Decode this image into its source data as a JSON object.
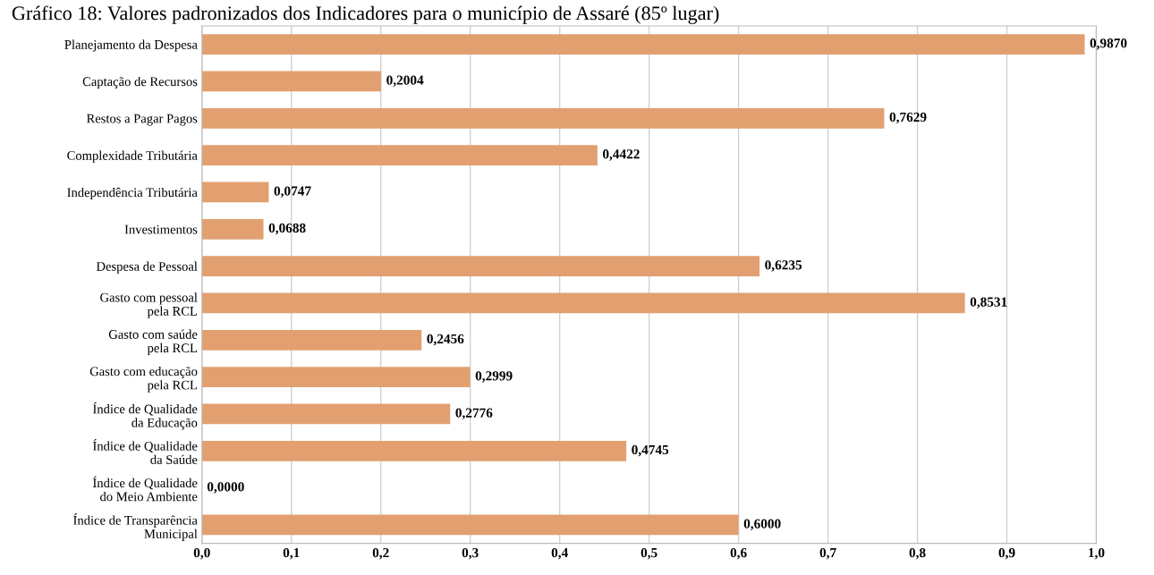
{
  "chart_data": {
    "type": "bar",
    "orientation": "horizontal",
    "title": "Gráfico 18: Valores padronizados dos Indicadores para o município de Assaré (85º lugar)",
    "categories": [
      "Planejamento da Despesa",
      "Captação de Recursos",
      "Restos a Pagar Pagos",
      "Complexidade Tributária",
      "Independência Tributária",
      "Investimentos",
      "Despesa de Pessoal",
      "Gasto com pessoal\npela RCL",
      "Gasto com saúde\npela RCL",
      "Gasto com educação\npela RCL",
      "Índice de Qualidade\nda Educação",
      "Índice de Qualidade\nda Saúde",
      "Índice de Qualidade\ndo Meio Ambiente",
      "Índice de Transparência\nMunicipal"
    ],
    "values": [
      0.987,
      0.2004,
      0.7629,
      0.4422,
      0.0747,
      0.0688,
      0.6235,
      0.8531,
      0.2456,
      0.2999,
      0.2776,
      0.4745,
      0.0,
      0.6
    ],
    "value_labels": [
      "0,9870",
      "0,2004",
      "0,7629",
      "0,4422",
      "0,0747",
      "0,0688",
      "0,6235",
      "0,8531",
      "0,2456",
      "0,2999",
      "0,2776",
      "0,4745",
      "0,0000",
      "0,6000"
    ],
    "color": "#e2a070",
    "xlim": [
      0,
      1
    ],
    "xticks": [
      {
        "value": 0,
        "label": "0,0"
      },
      {
        "value": 0.1,
        "label": "0,1"
      },
      {
        "value": 0.2,
        "label": "0,2"
      },
      {
        "value": 0.3,
        "label": "0,3"
      },
      {
        "value": 0.4,
        "label": "0,4"
      },
      {
        "value": 0.5,
        "label": "0,5"
      },
      {
        "value": 0.6,
        "label": "0,6"
      },
      {
        "value": 0.7,
        "label": "0,7"
      },
      {
        "value": 0.8,
        "label": "0,8"
      },
      {
        "value": 0.9,
        "label": "0,9"
      },
      {
        "value": 1,
        "label": "1,0"
      }
    ],
    "grid": "x"
  }
}
